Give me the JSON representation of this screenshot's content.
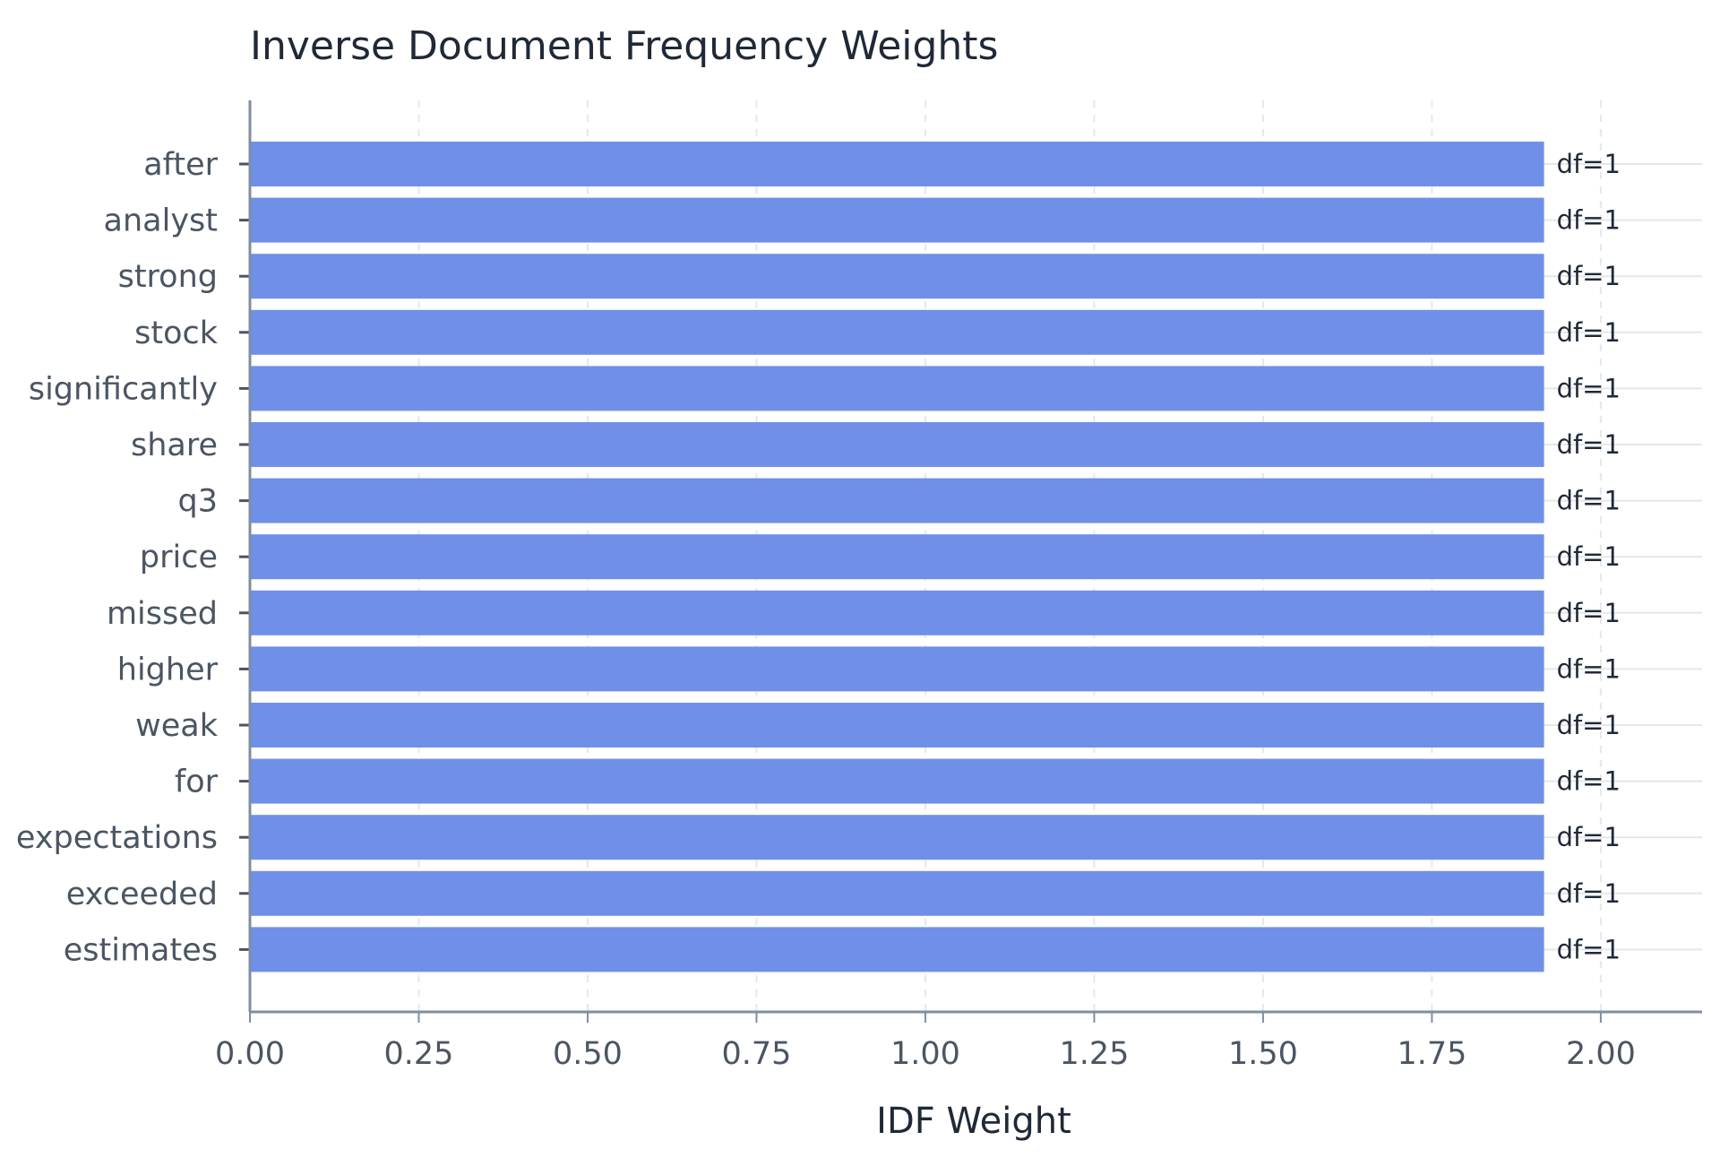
{
  "chart_data": {
    "type": "bar",
    "orientation": "horizontal",
    "title": "Inverse Document Frequency Weights",
    "xlabel": "IDF Weight",
    "ylabel": "",
    "xlim": [
      0,
      2.15
    ],
    "xticks": [
      0.0,
      0.25,
      0.5,
      0.75,
      1.0,
      1.25,
      1.5,
      1.75,
      2.0
    ],
    "xtick_labels": [
      "0.00",
      "0.25",
      "0.50",
      "0.75",
      "1.00",
      "1.25",
      "1.50",
      "1.75",
      "2.00"
    ],
    "categories": [
      "after",
      "analyst",
      "strong",
      "stock",
      "significantly",
      "share",
      "q3",
      "price",
      "missed",
      "higher",
      "weak",
      "for",
      "expectations",
      "exceeded",
      "estimates"
    ],
    "values": [
      1.916,
      1.916,
      1.916,
      1.916,
      1.916,
      1.916,
      1.916,
      1.916,
      1.916,
      1.916,
      1.916,
      1.916,
      1.916,
      1.916,
      1.916
    ],
    "bar_labels": [
      "df=1",
      "df=1",
      "df=1",
      "df=1",
      "df=1",
      "df=1",
      "df=1",
      "df=1",
      "df=1",
      "df=1",
      "df=1",
      "df=1",
      "df=1",
      "df=1",
      "df=1"
    ],
    "grid": true,
    "colors": {
      "bar": "#6f8fe9",
      "axis": "#7f8ea3",
      "grid": "#e5e7eb"
    }
  }
}
